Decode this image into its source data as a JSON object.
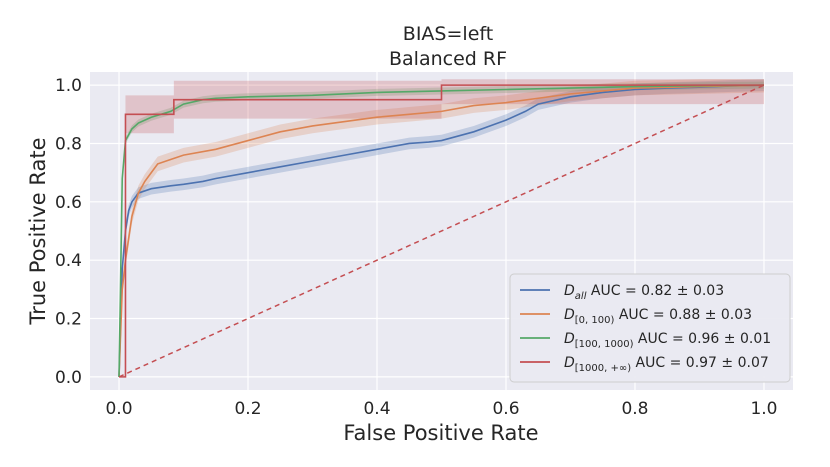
{
  "chart_data": {
    "type": "line",
    "title_lines": [
      "BIAS=left",
      "Balanced RF"
    ],
    "xlabel": "False Positive Rate",
    "ylabel": "True Positive Rate",
    "xlim": [
      -0.045,
      1.045
    ],
    "ylim": [
      -0.045,
      1.045
    ],
    "xticks": [
      "0.0",
      "0.2",
      "0.4",
      "0.6",
      "0.8",
      "1.0"
    ],
    "yticks": [
      "0.0",
      "0.2",
      "0.4",
      "0.6",
      "0.8",
      "1.0"
    ],
    "grid": true,
    "legend_position": "lower-right",
    "series": [
      {
        "base": "D",
        "sub": "all",
        "sub_italic": true,
        "auc": "AUC = 0.82 ± 0.03",
        "color": "#4c72b0",
        "x": [
          0.0,
          0.005,
          0.01,
          0.015,
          0.02,
          0.03,
          0.05,
          0.08,
          0.1,
          0.13,
          0.15,
          0.2,
          0.25,
          0.3,
          0.35,
          0.4,
          0.45,
          0.48,
          0.5,
          0.55,
          0.6,
          0.63,
          0.65,
          0.7,
          0.75,
          0.8,
          0.85,
          0.9,
          0.95,
          1.0
        ],
        "y": [
          0.0,
          0.37,
          0.5,
          0.57,
          0.6,
          0.63,
          0.645,
          0.655,
          0.66,
          0.67,
          0.68,
          0.7,
          0.72,
          0.74,
          0.76,
          0.78,
          0.8,
          0.805,
          0.81,
          0.84,
          0.88,
          0.91,
          0.935,
          0.96,
          0.975,
          0.985,
          0.99,
          0.993,
          0.997,
          1.0
        ],
        "band": 0.02
      },
      {
        "base": "D",
        "sub": "[0, 100)",
        "sub_italic": false,
        "auc": "AUC = 0.88 ± 0.03",
        "color": "#dd8452",
        "x": [
          0.0,
          0.005,
          0.01,
          0.02,
          0.03,
          0.04,
          0.05,
          0.06,
          0.08,
          0.1,
          0.15,
          0.2,
          0.25,
          0.3,
          0.35,
          0.4,
          0.45,
          0.5,
          0.55,
          0.6,
          0.65,
          0.7,
          0.75,
          0.8,
          0.9,
          1.0
        ],
        "y": [
          0.0,
          0.3,
          0.4,
          0.55,
          0.63,
          0.67,
          0.7,
          0.73,
          0.745,
          0.76,
          0.78,
          0.81,
          0.84,
          0.86,
          0.875,
          0.89,
          0.9,
          0.91,
          0.93,
          0.94,
          0.955,
          0.97,
          0.98,
          0.99,
          0.995,
          1.0
        ],
        "band": 0.025
      },
      {
        "base": "D",
        "sub": "[100, 1000)",
        "sub_italic": false,
        "auc": "AUC = 0.96 ± 0.01",
        "color": "#55a868",
        "x": [
          0.0,
          0.005,
          0.01,
          0.02,
          0.03,
          0.05,
          0.08,
          0.1,
          0.13,
          0.15,
          0.2,
          0.3,
          0.4,
          0.5,
          0.6,
          0.7,
          0.8,
          0.9,
          1.0
        ],
        "y": [
          0.0,
          0.68,
          0.81,
          0.85,
          0.87,
          0.89,
          0.91,
          0.935,
          0.95,
          0.955,
          0.96,
          0.965,
          0.975,
          0.98,
          0.985,
          0.99,
          0.995,
          0.998,
          1.0
        ],
        "band": 0.012
      },
      {
        "base": "D",
        "sub": "[1000, +∞)",
        "sub_italic": false,
        "auc": "AUC = 0.97 ± 0.07",
        "color": "#c44e52",
        "x": [
          0.0,
          0.01,
          0.01,
          0.085,
          0.085,
          0.5,
          0.5,
          1.0
        ],
        "y": [
          0.0,
          0.0,
          0.9,
          0.9,
          0.95,
          0.95,
          1.0,
          1.0
        ],
        "band": 0.065
      }
    ],
    "diagonal": {
      "color": "#c44e52",
      "dash": true
    }
  }
}
